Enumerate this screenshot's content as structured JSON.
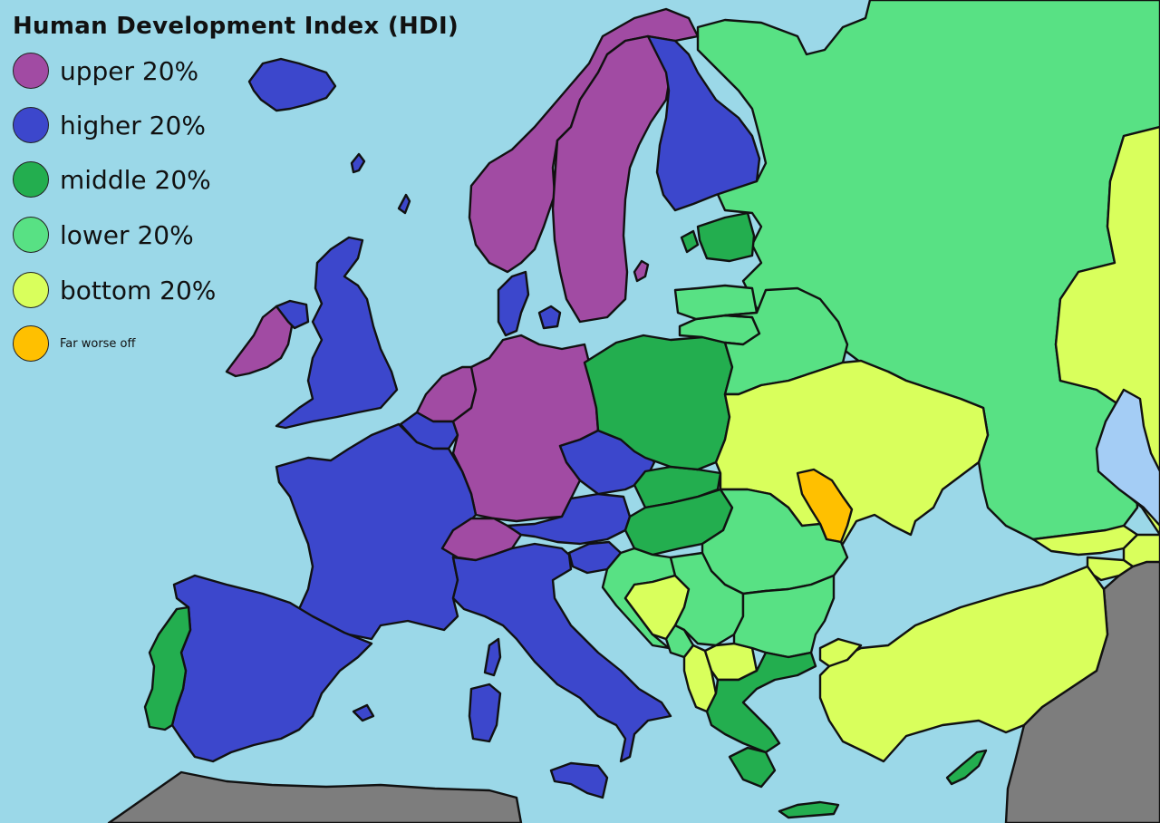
{
  "map": {
    "title": "Human Development Index (HDI)",
    "colors": {
      "sea": "#9bd8e8",
      "lake": "#a4cdf5",
      "outside": "#7d7d7d",
      "upper": "#a14ba3",
      "higher": "#3c47cc",
      "middle": "#23ae4f",
      "lower": "#58e184",
      "bottom": "#d9ff5c",
      "far_worse": "#ffc000"
    },
    "legend": [
      {
        "key": "upper",
        "label": "upper 20%"
      },
      {
        "key": "higher",
        "label": "higher 20%"
      },
      {
        "key": "middle",
        "label": "middle 20%"
      },
      {
        "key": "lower",
        "label": "lower 20%"
      },
      {
        "key": "bottom",
        "label": "bottom 20%"
      },
      {
        "key": "far_worse",
        "label": "Far worse off"
      }
    ]
  }
}
